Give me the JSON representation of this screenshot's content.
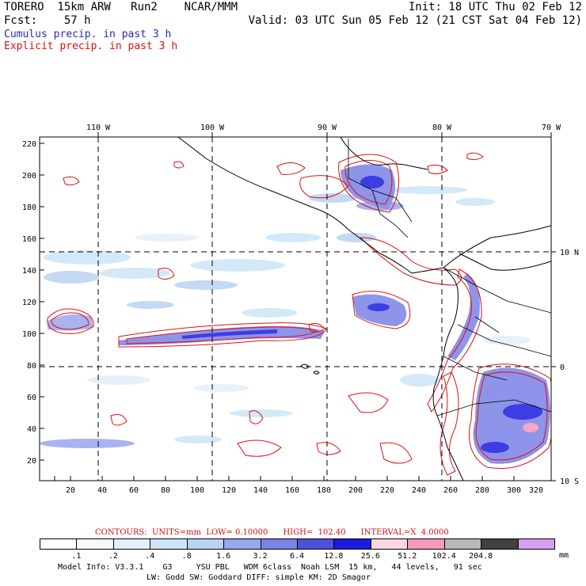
{
  "header": {
    "model": "TORERO  15km ARW   Run2    NCAR/MMM",
    "init": "Init: 18 UTC Thu 02 Feb 12",
    "fcst": "Fcst:    57 h",
    "valid": "Valid: 03 UTC Sun 05 Feb 12 (21 CST Sat 04 Feb 12)",
    "line_cumulus": "Cumulus precip. in past 3 h",
    "line_explicit": "Explicit precip. in past 3 h",
    "cumulus_color": "#2a2ab8",
    "explicit_color": "#e01010"
  },
  "map": {
    "lon_labels": [
      "110 W",
      "100 W",
      "90 W",
      "80 W",
      "70 W"
    ],
    "lat_labels": [
      "10 N",
      "0",
      "10 S"
    ],
    "x_ticks": [
      "20",
      "40",
      "60",
      "80",
      "100",
      "120",
      "140",
      "160",
      "180",
      "200",
      "220",
      "240",
      "260",
      "280",
      "300",
      "320"
    ],
    "y_ticks": [
      "220",
      "200",
      "180",
      "160",
      "140",
      "120",
      "100",
      "80",
      "60",
      "40",
      "20"
    ]
  },
  "contour_note": {
    "text": "CONTOURS:  UNITS=mm  LOW= 0.10000      HIGH=  102.40      INTERVAL=X  4.0000",
    "color": "#d01010"
  },
  "colorbar": {
    "colors": [
      "#ffffff",
      "#f4f8ff",
      "#e4eefc",
      "#cde6f7",
      "#b9d3f3",
      "#9aa6ee",
      "#7a82e6",
      "#5050dc",
      "#1c1ce0",
      "#fcd6de",
      "#f59abb",
      "#b8b8b8",
      "#404040",
      "#d4a0f0"
    ],
    "labels": [
      ".1",
      ".2",
      ".4",
      ".8",
      "1.6",
      "3.2",
      "6.4",
      "12.8",
      "25.6",
      "51.2",
      "102.4",
      "204.8"
    ],
    "unit": "mm"
  },
  "footer": {
    "line1": "Model Info: V3.3.1    G3     YSU PBL   WDM 6class  Noah LSM  15 km,   44 levels,   91 sec",
    "line2": "LW: Godd SW: Goddard DIFF: simple KM: 2D Smagor"
  }
}
